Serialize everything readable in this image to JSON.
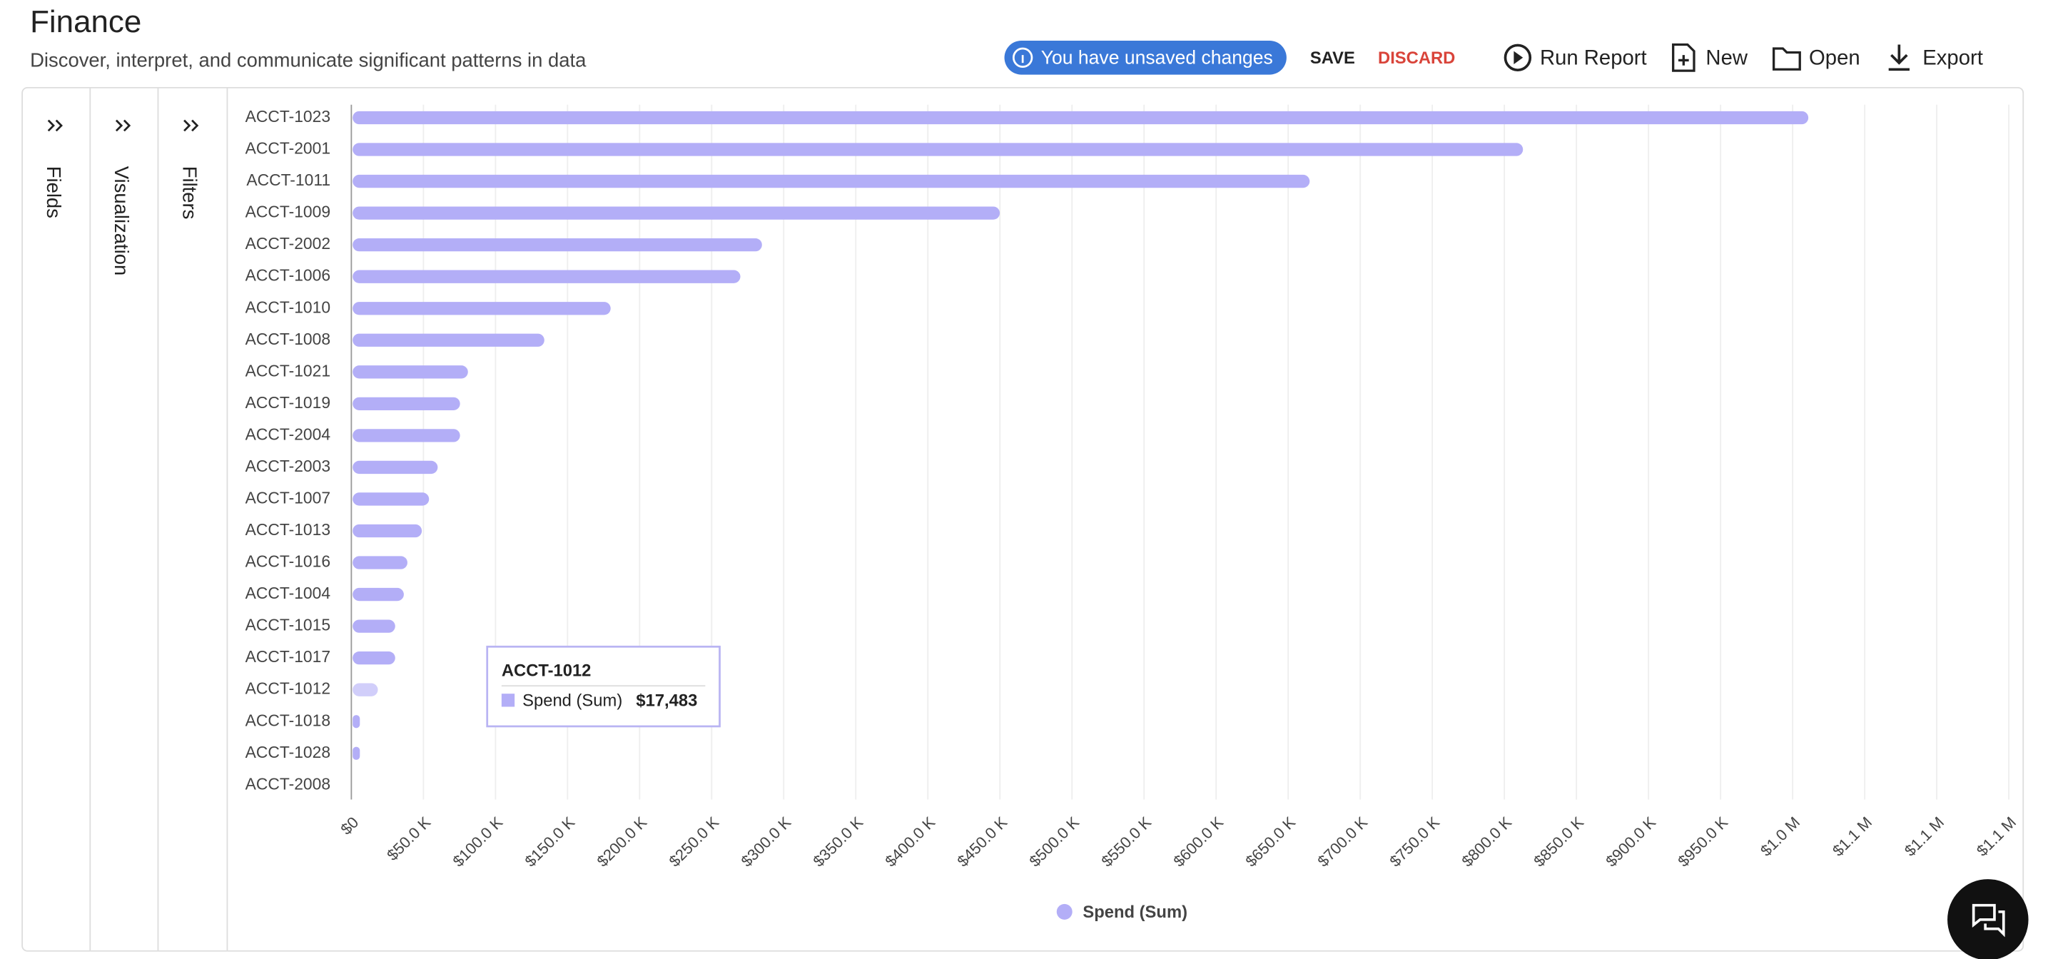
{
  "header": {
    "title": "Finance",
    "subtitle": "Discover, interpret, and communicate significant patterns in data"
  },
  "toolbar": {
    "unsaved": "You have unsaved changes",
    "save": "SAVE",
    "discard": "DISCARD",
    "run_report": "Run Report",
    "new": "New",
    "open": "Open",
    "export": "Export"
  },
  "side_tabs": [
    "Fields",
    "Visualization",
    "Filters"
  ],
  "chart_data": {
    "type": "bar",
    "orientation": "horizontal",
    "categories": [
      "ACCT-1023",
      "ACCT-2001",
      "ACCT-1011",
      "ACCT-1009",
      "ACCT-2002",
      "ACCT-1006",
      "ACCT-1010",
      "ACCT-1008",
      "ACCT-1021",
      "ACCT-1019",
      "ACCT-2004",
      "ACCT-2003",
      "ACCT-1007",
      "ACCT-1013",
      "ACCT-1016",
      "ACCT-1004",
      "ACCT-1015",
      "ACCT-1017",
      "ACCT-1012",
      "ACCT-1018",
      "ACCT-1028",
      "ACCT-2008"
    ],
    "series": [
      {
        "name": "Spend (Sum)",
        "color": "#b3aef7",
        "values": [
          1010000,
          812000,
          664000,
          449000,
          284000,
          269000,
          179000,
          133000,
          80000,
          74500,
          74500,
          59000,
          53000,
          48000,
          38000,
          35500,
          29500,
          29500,
          17483,
          5000,
          5000,
          0
        ]
      }
    ],
    "xlim": [
      0,
      1150000
    ],
    "xticks": [
      {
        "value": 0,
        "label": "$0"
      },
      {
        "value": 50000,
        "label": "$50.0 K"
      },
      {
        "value": 100000,
        "label": "$100.0 K"
      },
      {
        "value": 150000,
        "label": "$150.0 K"
      },
      {
        "value": 200000,
        "label": "$200.0 K"
      },
      {
        "value": 250000,
        "label": "$250.0 K"
      },
      {
        "value": 300000,
        "label": "$300.0 K"
      },
      {
        "value": 350000,
        "label": "$350.0 K"
      },
      {
        "value": 400000,
        "label": "$400.0 K"
      },
      {
        "value": 450000,
        "label": "$450.0 K"
      },
      {
        "value": 500000,
        "label": "$500.0 K"
      },
      {
        "value": 550000,
        "label": "$550.0 K"
      },
      {
        "value": 600000,
        "label": "$600.0 K"
      },
      {
        "value": 650000,
        "label": "$650.0 K"
      },
      {
        "value": 700000,
        "label": "$700.0 K"
      },
      {
        "value": 750000,
        "label": "$750.0 K"
      },
      {
        "value": 800000,
        "label": "$800.0 K"
      },
      {
        "value": 850000,
        "label": "$850.0 K"
      },
      {
        "value": 900000,
        "label": "$900.0 K"
      },
      {
        "value": 950000,
        "label": "$950.0 K"
      },
      {
        "value": 1000000,
        "label": "$1.0 M"
      },
      {
        "value": 1050000,
        "label": "$1.1 M"
      },
      {
        "value": 1100000,
        "label": "$1.1 M"
      },
      {
        "value": 1150000,
        "label": "$1.1 M"
      }
    ],
    "grid": true,
    "highlight_index": 18,
    "tooltip": {
      "title": "ACCT-1012",
      "series": "Spend (Sum)",
      "value_label": "$17,483"
    }
  }
}
